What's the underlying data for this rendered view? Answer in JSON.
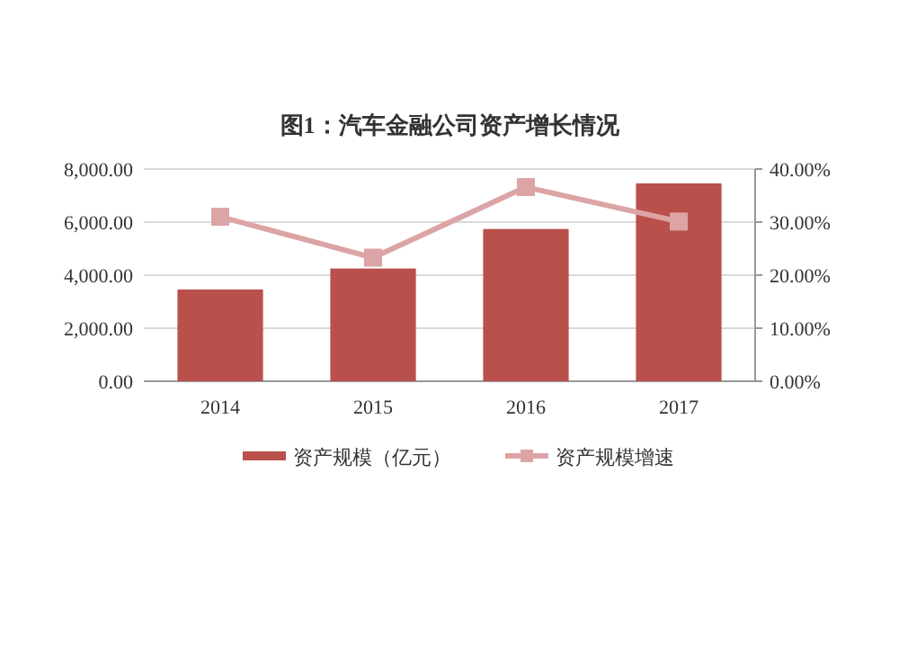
{
  "chart_data": {
    "type": "bar",
    "title": "图1：汽车金融公司资产增长情况",
    "categories": [
      "2014",
      "2015",
      "2016",
      "2017"
    ],
    "series": [
      {
        "name": "资产规模（亿元）",
        "color": "#b9504c",
        "values": [
          3460,
          4250,
          5740,
          7460
        ]
      },
      {
        "name": "资产规模增速",
        "type": "line",
        "axis": "y2",
        "color": "#dca4a4",
        "marker": "square",
        "values": [
          31.0,
          23.3,
          36.6,
          30.1
        ]
      }
    ],
    "ylim": [
      0,
      8000
    ],
    "yticks": [
      {
        "value": 0,
        "label": "0.00"
      },
      {
        "value": 2000,
        "label": "2,000.00"
      },
      {
        "value": 4000,
        "label": "4,000.00"
      },
      {
        "value": 6000,
        "label": "6,000.00"
      },
      {
        "value": 8000,
        "label": "8,000.00"
      }
    ],
    "y2lim": [
      0,
      40
    ],
    "y2ticks": [
      {
        "value": 0,
        "label": "0.00%"
      },
      {
        "value": 10,
        "label": "10.00%"
      },
      {
        "value": 20,
        "label": "20.00%"
      },
      {
        "value": 30,
        "label": "30.00%"
      },
      {
        "value": 40,
        "label": "40.00%"
      }
    ],
    "grid": "y",
    "legend": "bottom"
  }
}
